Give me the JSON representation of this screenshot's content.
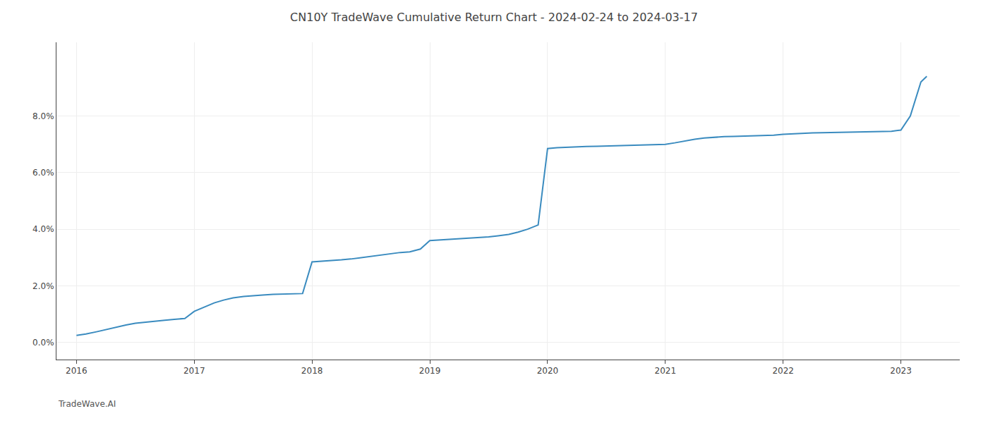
{
  "chart_data": {
    "type": "line",
    "title": "CN10Y TradeWave Cumulative Return Chart - 2024-02-24 to 2024-03-17",
    "annotations": [
      "TradeWave.AI"
    ],
    "color": "#3a8bbf",
    "grid": true,
    "x": [
      2016.0,
      2016.08,
      2016.17,
      2016.25,
      2016.33,
      2016.42,
      2016.5,
      2016.58,
      2016.67,
      2016.75,
      2016.83,
      2016.92,
      2017.0,
      2017.08,
      2017.17,
      2017.25,
      2017.33,
      2017.42,
      2017.5,
      2017.58,
      2017.67,
      2017.75,
      2017.83,
      2017.92,
      2018.0,
      2018.08,
      2018.17,
      2018.25,
      2018.33,
      2018.42,
      2018.5,
      2018.58,
      2018.67,
      2018.75,
      2018.83,
      2018.92,
      2019.0,
      2019.08,
      2019.17,
      2019.25,
      2019.33,
      2019.42,
      2019.5,
      2019.58,
      2019.67,
      2019.75,
      2019.83,
      2019.92,
      2020.0,
      2020.08,
      2020.17,
      2020.25,
      2020.33,
      2020.42,
      2020.5,
      2020.58,
      2020.67,
      2020.75,
      2020.83,
      2020.92,
      2021.0,
      2021.08,
      2021.17,
      2021.25,
      2021.33,
      2021.42,
      2021.5,
      2021.58,
      2021.67,
      2021.75,
      2021.83,
      2021.92,
      2022.0,
      2022.08,
      2022.17,
      2022.25,
      2022.33,
      2022.42,
      2022.5,
      2022.58,
      2022.67,
      2022.75,
      2022.83,
      2022.92,
      2023.0,
      2023.08,
      2023.17,
      2023.22
    ],
    "values": [
      0.0025,
      0.003,
      0.0038,
      0.0046,
      0.0054,
      0.0062,
      0.0068,
      0.0072,
      0.0076,
      0.0079,
      0.0082,
      0.0085,
      0.011,
      0.0125,
      0.014,
      0.015,
      0.0158,
      0.0163,
      0.0166,
      0.0168,
      0.017,
      0.0171,
      0.0172,
      0.0173,
      0.0285,
      0.0287,
      0.0289,
      0.0292,
      0.0295,
      0.03,
      0.0305,
      0.031,
      0.0315,
      0.0318,
      0.032,
      0.033,
      0.036,
      0.0362,
      0.0364,
      0.0366,
      0.0368,
      0.037,
      0.0373,
      0.0377,
      0.0382,
      0.039,
      0.04,
      0.0415,
      0.0685,
      0.0688,
      0.069,
      0.0691,
      0.0692,
      0.0693,
      0.0694,
      0.0695,
      0.0696,
      0.0697,
      0.0698,
      0.0699,
      0.07,
      0.0705,
      0.0712,
      0.0718,
      0.0722,
      0.0725,
      0.0727,
      0.0728,
      0.0729,
      0.073,
      0.0731,
      0.0732,
      0.0735,
      0.0737,
      0.0739,
      0.074,
      0.0741,
      0.0742,
      0.0743,
      0.0744,
      0.0744,
      0.0745,
      0.0745,
      0.0746,
      0.075,
      0.08,
      0.092,
      0.094
    ],
    "xlim": [
      2015.83,
      2023.5
    ],
    "xticks": [
      2016,
      2017,
      2018,
      2019,
      2020,
      2021,
      2022,
      2023
    ],
    "ylim": [
      -0.006,
      0.106
    ],
    "yticks": [
      {
        "value": 0.0,
        "label": "0.0%"
      },
      {
        "value": 0.02,
        "label": "2.0%"
      },
      {
        "value": 0.04,
        "label": "4.0%"
      },
      {
        "value": 0.06,
        "label": "6.0%"
      },
      {
        "value": 0.08,
        "label": "8.0%"
      }
    ]
  }
}
